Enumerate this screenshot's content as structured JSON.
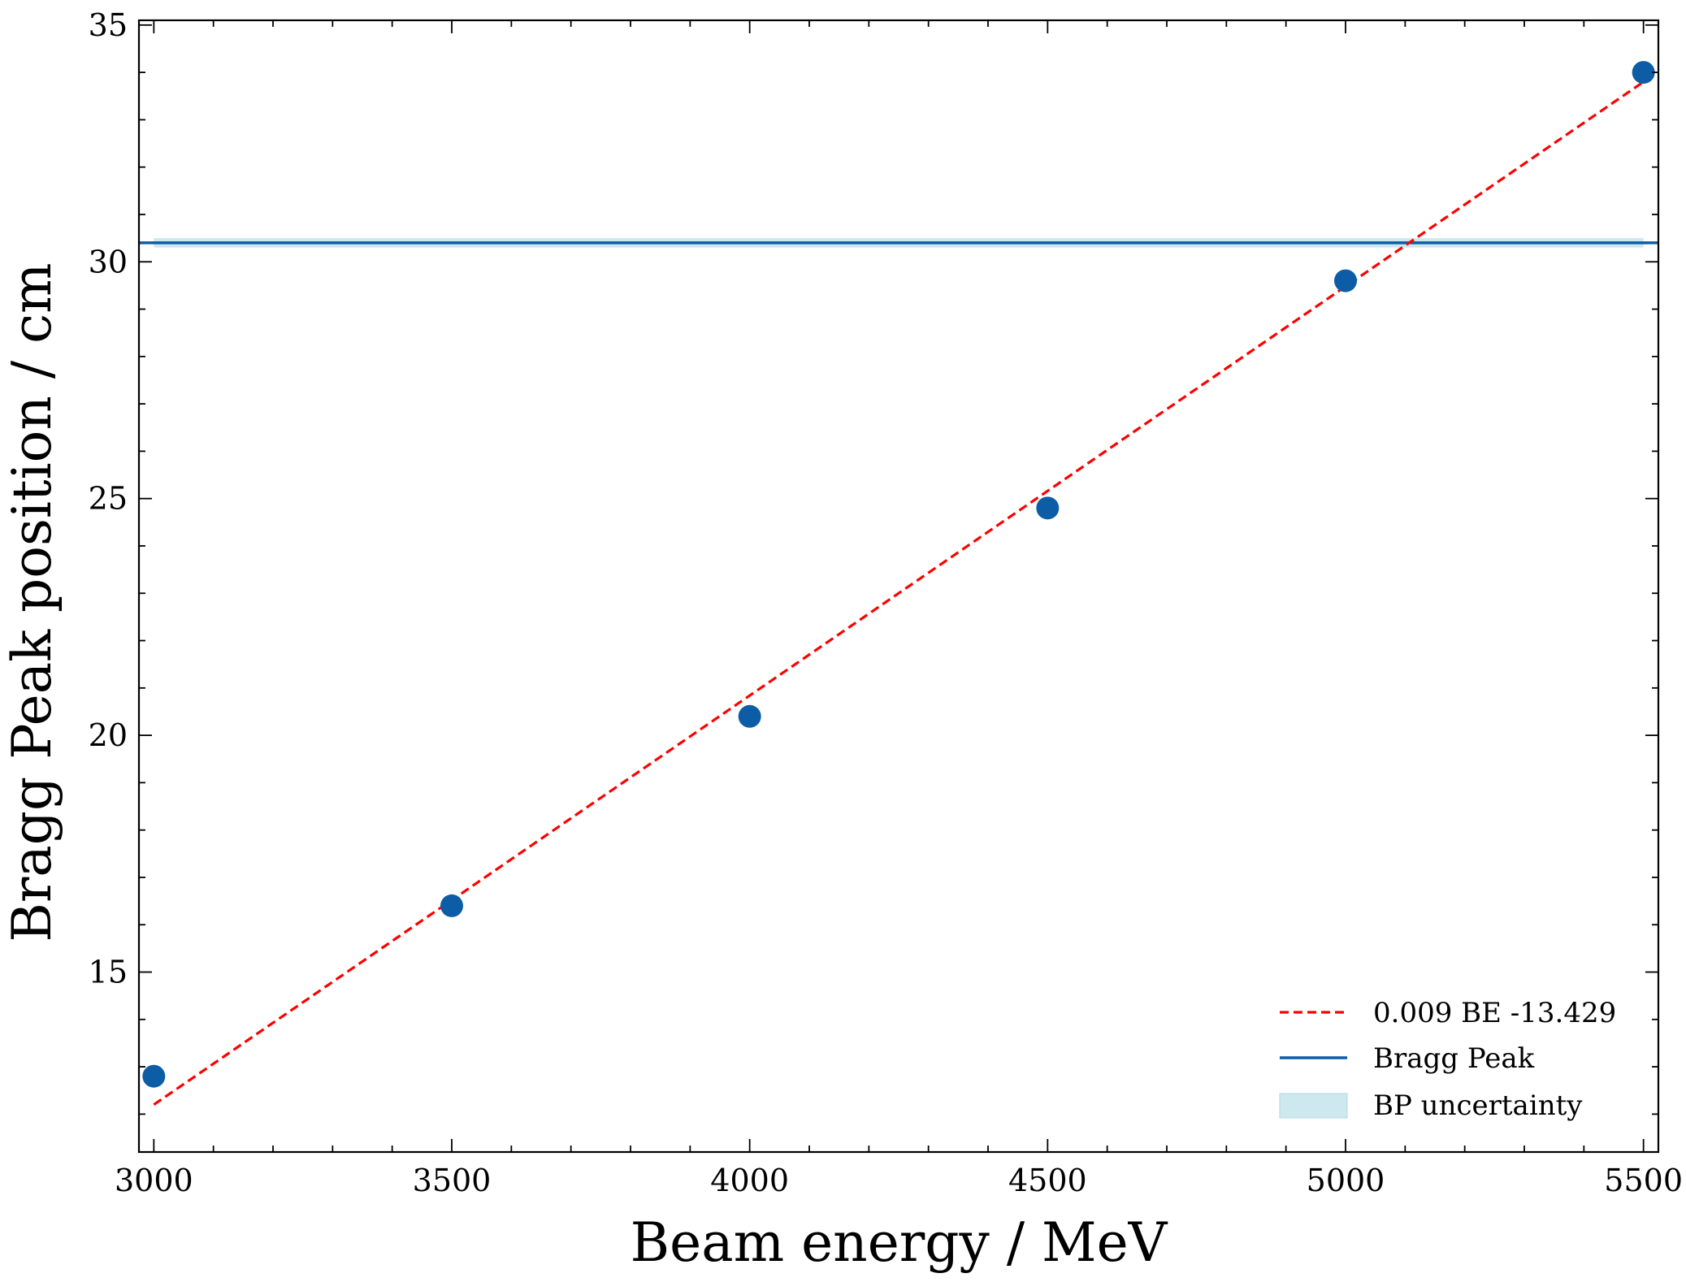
{
  "chart_data": {
    "type": "scatter",
    "xlabel": "Beam energy / MeV",
    "ylabel": "Bragg Peak position / cm",
    "xlim": [
      2975,
      5525
    ],
    "ylim": [
      11.2,
      35.1
    ],
    "xticks": [
      3000,
      3500,
      4000,
      4500,
      5000,
      5500
    ],
    "xtick_labels": [
      "3000",
      "3500",
      "4000",
      "4500",
      "5000",
      "5500"
    ],
    "yticks": [
      15,
      20,
      25,
      30,
      35
    ],
    "ytick_labels": [
      "15",
      "20",
      "25",
      "30",
      "35"
    ],
    "x_minor_step": 100,
    "y_minor_step": 1,
    "grid": false,
    "legend_position": "bottom-right",
    "points": [
      {
        "x": 3000,
        "y": 12.8
      },
      {
        "x": 3500,
        "y": 16.4
      },
      {
        "x": 4000,
        "y": 20.4
      },
      {
        "x": 4500,
        "y": 24.8
      },
      {
        "x": 5000,
        "y": 29.6
      },
      {
        "x": 5500,
        "y": 34.0
      }
    ],
    "fit_line": {
      "label": "0.009 BE -13.429",
      "x": [
        3000,
        5500
      ],
      "y": [
        12.2,
        33.8
      ]
    },
    "bragg_peak": {
      "label": "Bragg Peak",
      "y": 30.4,
      "x_range": [
        2975,
        5525
      ]
    },
    "bp_uncertainty": {
      "label": "BP uncertainty",
      "y_low": 30.3,
      "y_high": 30.5,
      "x_range": [
        3000,
        5500
      ]
    },
    "legend": [
      "0.009 BE -13.429",
      "Bragg Peak",
      "BP uncertainty"
    ],
    "colors": {
      "points": "#0C5DA5",
      "fit_line": "#FF0000",
      "bragg_peak": "#0C5DA5",
      "bp_uncertainty": "#ADD8E6"
    }
  }
}
